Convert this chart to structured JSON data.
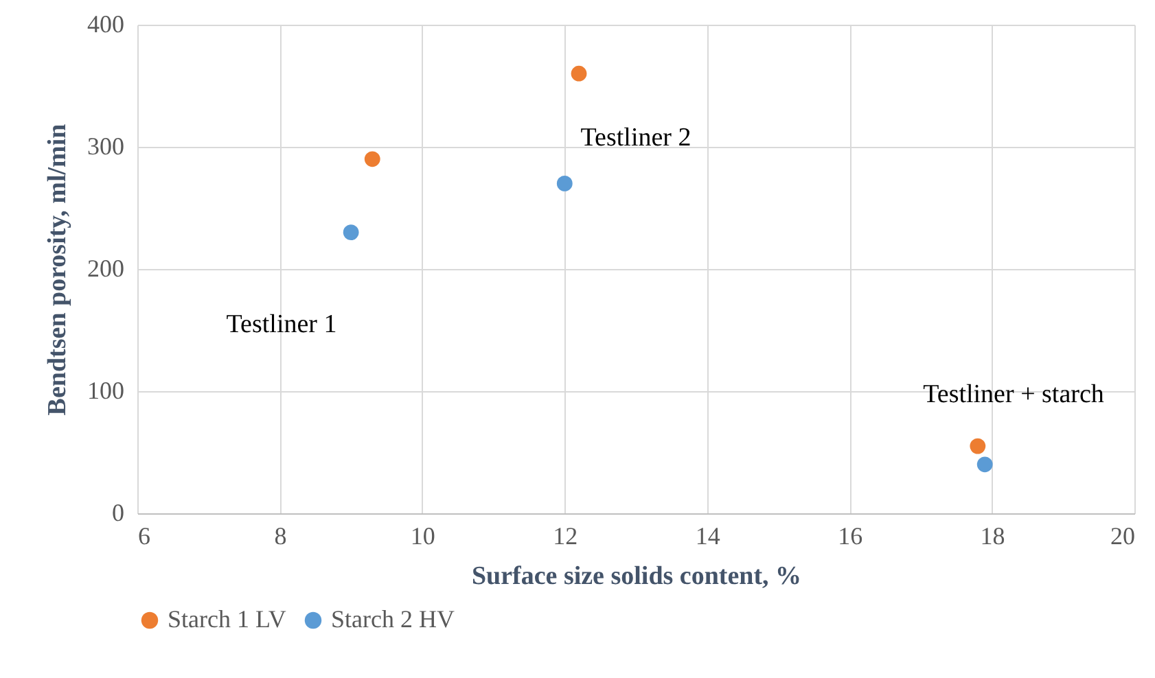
{
  "chart_data": {
    "type": "scatter",
    "xlabel": "Surface size solids content, %",
    "ylabel": "Bendtsen porosity, ml/min",
    "xlim": [
      6,
      20
    ],
    "xticks": [
      6,
      8,
      10,
      12,
      14,
      16,
      18,
      20
    ],
    "ylim": [
      0,
      400
    ],
    "yticks": [
      0,
      100,
      200,
      300,
      400
    ],
    "grid": true,
    "legend": "bottom",
    "marker": "circle",
    "series": [
      {
        "name": "Starch 1 LV",
        "color": "#ed7d31",
        "x": [
          9.3,
          12.2,
          17.8
        ],
        "values": [
          290,
          360,
          55
        ]
      },
      {
        "name": "Starch 2 HV",
        "color": "#5b9bd5",
        "x": [
          9,
          12,
          17.9
        ],
        "values": [
          230,
          270,
          40
        ]
      }
    ],
    "annotations": [
      "Testliner 1",
      "Testliner 2",
      "Testliner + starch"
    ]
  }
}
